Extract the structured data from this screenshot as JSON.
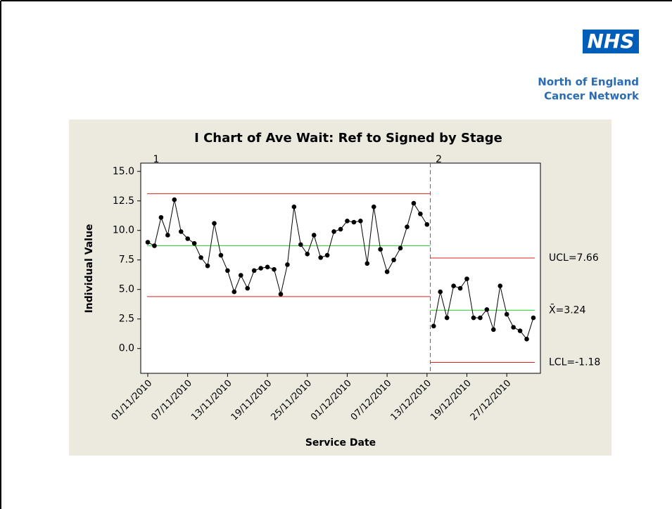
{
  "header": {
    "logo": "NHS",
    "org_line1": "North of England",
    "org_line2": "Cancer Network"
  },
  "chart_data": {
    "type": "line",
    "title": "I Chart of Ave Wait: Ref to Signed by Stage",
    "xlabel": "Service Date",
    "ylabel": "Individual Value",
    "categories": [
      "01/11/2010",
      null,
      null,
      null,
      null,
      null,
      "07/11/2010",
      null,
      null,
      null,
      null,
      null,
      "13/11/2010",
      null,
      null,
      null,
      null,
      null,
      "19/11/2010",
      null,
      null,
      null,
      null,
      null,
      "25/11/2010",
      null,
      null,
      null,
      null,
      null,
      "01/12/2010",
      null,
      null,
      null,
      null,
      null,
      "07/12/2010",
      null,
      null,
      null,
      null,
      null,
      "13/12/2010",
      null,
      null,
      null,
      null,
      null,
      "19/12/2010",
      null,
      null,
      null,
      null,
      null,
      "27/12/2010",
      null,
      null,
      null,
      null
    ],
    "series": [
      {
        "name": "1",
        "color": "#000000",
        "values": [
          9.0,
          8.7,
          11.1,
          9.6,
          12.6,
          9.9,
          9.3,
          8.9,
          7.7,
          7.0,
          10.6,
          7.9,
          6.6,
          4.8,
          6.2,
          5.1,
          6.6,
          6.8,
          6.9,
          6.7,
          4.6,
          7.1,
          12.0,
          8.8,
          8.0,
          9.6,
          7.7,
          7.9,
          9.9,
          10.1,
          10.8,
          10.7,
          10.8,
          7.2,
          12.0,
          8.4,
          6.5,
          7.5,
          8.5,
          10.3,
          12.3,
          11.4,
          10.5,
          null,
          null,
          null,
          null,
          null,
          null,
          null,
          null,
          null,
          null,
          null,
          null,
          null,
          null,
          null,
          null
        ],
        "limits": [
          13.1,
          8.7,
          4.4
        ]
      },
      {
        "name": "2",
        "color": "#000000",
        "values": [
          null,
          null,
          null,
          null,
          null,
          null,
          null,
          null,
          null,
          null,
          null,
          null,
          null,
          null,
          null,
          null,
          null,
          null,
          null,
          null,
          null,
          null,
          null,
          null,
          null,
          null,
          null,
          null,
          null,
          null,
          null,
          null,
          null,
          null,
          null,
          null,
          null,
          null,
          null,
          null,
          null,
          null,
          null,
          1.9,
          4.8,
          2.6,
          5.3,
          5.1,
          5.9,
          2.6,
          2.6,
          3.3,
          1.6,
          5.3,
          2.9,
          1.8,
          1.5,
          0.8,
          2.6
        ],
        "limits": [
          7.66,
          3.24,
          -1.18
        ],
        "limit_labels": [
          "UCL=7.66",
          "X̄=3.24",
          "LCL=-1.18"
        ]
      }
    ],
    "limit_colors": [
      "#e0201c",
      "#22cc22",
      "#e0201c"
    ],
    "ylim": [
      -2.1,
      15.7
    ],
    "yticks": [
      {
        "value": 0,
        "label": "0.0"
      },
      {
        "value": 2.5,
        "label": "2.5"
      },
      {
        "value": 5,
        "label": "5.0"
      },
      {
        "value": 7.5,
        "label": "7.5"
      },
      {
        "value": 10,
        "label": "10.0"
      },
      {
        "value": 12.5,
        "label": "12.5"
      },
      {
        "value": 15,
        "label": "15.0"
      }
    ],
    "grid": false
  }
}
